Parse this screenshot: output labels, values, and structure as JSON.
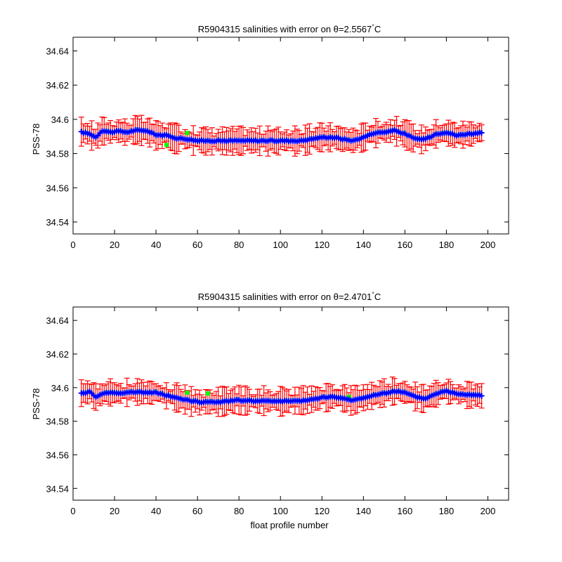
{
  "colors": {
    "error_bars": "#ff0000",
    "calibrated": "#0000ff",
    "original": "#00ff00",
    "axes": "#000000",
    "background": "#ffffff"
  },
  "chart_data": [
    {
      "type": "errorbar",
      "title_prefix": "R5904315 salinities with error on ",
      "theta_symbol": "θ",
      "theta_value": "=2.5567",
      "degree_symbol": "°",
      "unit": "C",
      "xlabel": "",
      "ylabel": "PSS-78",
      "xlim": [
        0,
        210
      ],
      "ylim": [
        34.533,
        34.648
      ],
      "xticks": [
        0,
        20,
        40,
        60,
        80,
        100,
        120,
        140,
        160,
        180,
        200
      ],
      "yticks": [
        34.54,
        34.56,
        34.58,
        34.6,
        34.62,
        34.64
      ],
      "xtick_labels": [
        "0",
        "20",
        "40",
        "60",
        "80",
        "100",
        "120",
        "140",
        "160",
        "180",
        "200"
      ],
      "ytick_labels": [
        "34.54",
        "34.56",
        "34.58",
        "34.6",
        "34.62",
        "34.64"
      ],
      "x_range": [
        4,
        197
      ],
      "calibrated_anchors": [
        [
          4,
          34.5925
        ],
        [
          8,
          34.5915
        ],
        [
          11,
          34.5895
        ],
        [
          14,
          34.5935
        ],
        [
          18,
          34.5925
        ],
        [
          22,
          34.593
        ],
        [
          26,
          34.5925
        ],
        [
          30,
          34.5935
        ],
        [
          35,
          34.5935
        ],
        [
          40,
          34.591
        ],
        [
          45,
          34.5905
        ],
        [
          50,
          34.589
        ],
        [
          55,
          34.5885
        ],
        [
          60,
          34.5875
        ],
        [
          70,
          34.5875
        ],
        [
          80,
          34.5875
        ],
        [
          90,
          34.5875
        ],
        [
          100,
          34.5875
        ],
        [
          110,
          34.5875
        ],
        [
          115,
          34.5885
        ],
        [
          120,
          34.5895
        ],
        [
          125,
          34.5895
        ],
        [
          130,
          34.5885
        ],
        [
          135,
          34.5875
        ],
        [
          140,
          34.5895
        ],
        [
          145,
          34.592
        ],
        [
          150,
          34.5925
        ],
        [
          155,
          34.5935
        ],
        [
          160,
          34.5915
        ],
        [
          165,
          34.5885
        ],
        [
          170,
          34.5885
        ],
        [
          175,
          34.5915
        ],
        [
          180,
          34.5925
        ],
        [
          185,
          34.5905
        ],
        [
          190,
          34.5915
        ],
        [
          197,
          34.592
        ]
      ],
      "error_halfwidth_range": [
        0.003,
        0.009
      ],
      "original_highlights": [
        [
          45,
          34.585
        ],
        [
          55,
          34.592
        ]
      ]
    },
    {
      "type": "errorbar",
      "title_prefix": "R5904315 salinities with error on ",
      "theta_symbol": "θ",
      "theta_value": "=2.4701",
      "degree_symbol": "°",
      "unit": "C",
      "xlabel": "float profile number",
      "ylabel": "PSS-78",
      "xlim": [
        0,
        210
      ],
      "ylim": [
        34.533,
        34.648
      ],
      "xticks": [
        0,
        20,
        40,
        60,
        80,
        100,
        120,
        140,
        160,
        180,
        200
      ],
      "yticks": [
        34.54,
        34.56,
        34.58,
        34.6,
        34.62,
        34.64
      ],
      "xtick_labels": [
        "0",
        "20",
        "40",
        "60",
        "80",
        "100",
        "120",
        "140",
        "160",
        "180",
        "200"
      ],
      "ytick_labels": [
        "34.54",
        "34.56",
        "34.58",
        "34.6",
        "34.62",
        "34.64"
      ],
      "x_range": [
        4,
        197
      ],
      "calibrated_anchors": [
        [
          4,
          34.5965
        ],
        [
          8,
          34.5975
        ],
        [
          11,
          34.5945
        ],
        [
          15,
          34.597
        ],
        [
          20,
          34.597
        ],
        [
          25,
          34.597
        ],
        [
          30,
          34.5975
        ],
        [
          35,
          34.597
        ],
        [
          40,
          34.597
        ],
        [
          45,
          34.5955
        ],
        [
          50,
          34.594
        ],
        [
          55,
          34.5925
        ],
        [
          60,
          34.5915
        ],
        [
          70,
          34.5915
        ],
        [
          80,
          34.5925
        ],
        [
          90,
          34.592
        ],
        [
          100,
          34.592
        ],
        [
          110,
          34.592
        ],
        [
          115,
          34.593
        ],
        [
          120,
          34.594
        ],
        [
          125,
          34.5945
        ],
        [
          130,
          34.5935
        ],
        [
          135,
          34.5925
        ],
        [
          140,
          34.594
        ],
        [
          145,
          34.5955
        ],
        [
          150,
          34.5965
        ],
        [
          155,
          34.598
        ],
        [
          160,
          34.597
        ],
        [
          165,
          34.5945
        ],
        [
          170,
          34.5935
        ],
        [
          175,
          34.5965
        ],
        [
          180,
          34.598
        ],
        [
          185,
          34.5965
        ],
        [
          190,
          34.596
        ],
        [
          197,
          34.5955
        ]
      ],
      "error_halfwidth_range": [
        0.003,
        0.009
      ],
      "original_highlights": [
        [
          55,
          34.597
        ],
        [
          65,
          34.5965
        ],
        [
          133,
          34.5945
        ]
      ]
    }
  ]
}
